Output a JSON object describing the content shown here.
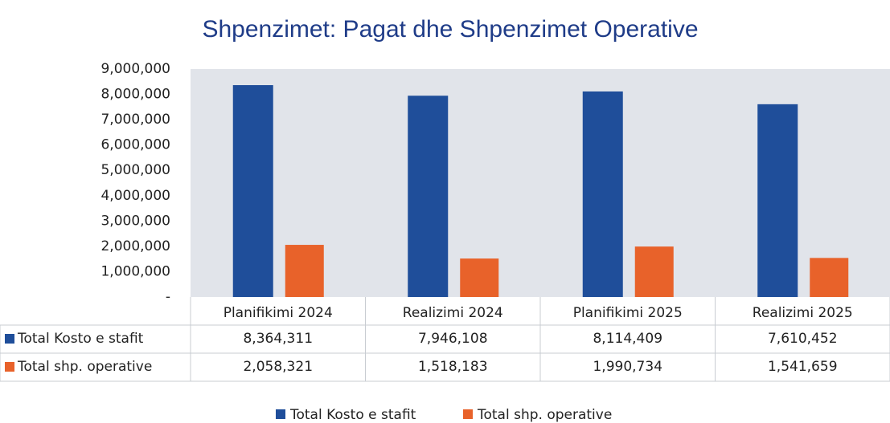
{
  "chart_data": {
    "type": "bar",
    "title": "Shpenzimet: Pagat dhe Shpenzimet Operative",
    "categories": [
      "Planifikimi  2024",
      "Realizimi  2024",
      "Planifikimi  2025",
      "Realizimi  2025"
    ],
    "series": [
      {
        "name": "Total Kosto e stafit",
        "color": "#1f4e9a",
        "values": [
          8364311,
          7946108,
          8114409,
          7610452
        ],
        "value_labels": [
          "8,364,311",
          "7,946,108",
          "8,114,409",
          "7,610,452"
        ]
      },
      {
        "name": "Total shp. operative",
        "color": "#e8622a",
        "values": [
          2058321,
          1518183,
          1990734,
          1541659
        ],
        "value_labels": [
          "2,058,321",
          "1,518,183",
          "1,990,734",
          "1,541,659"
        ]
      }
    ],
    "ylim": [
      0,
      9000000
    ],
    "yticks": [
      {
        "value": 0,
        "label": "-"
      },
      {
        "value": 1000000,
        "label": "1,000,000"
      },
      {
        "value": 2000000,
        "label": "2,000,000"
      },
      {
        "value": 3000000,
        "label": "3,000,000"
      },
      {
        "value": 4000000,
        "label": "4,000,000"
      },
      {
        "value": 5000000,
        "label": "5,000,000"
      },
      {
        "value": 6000000,
        "label": "6,000,000"
      },
      {
        "value": 7000000,
        "label": "7,000,000"
      },
      {
        "value": 8000000,
        "label": "8,000,000"
      },
      {
        "value": 9000000,
        "label": "9,000,000"
      }
    ],
    "grid": false
  }
}
